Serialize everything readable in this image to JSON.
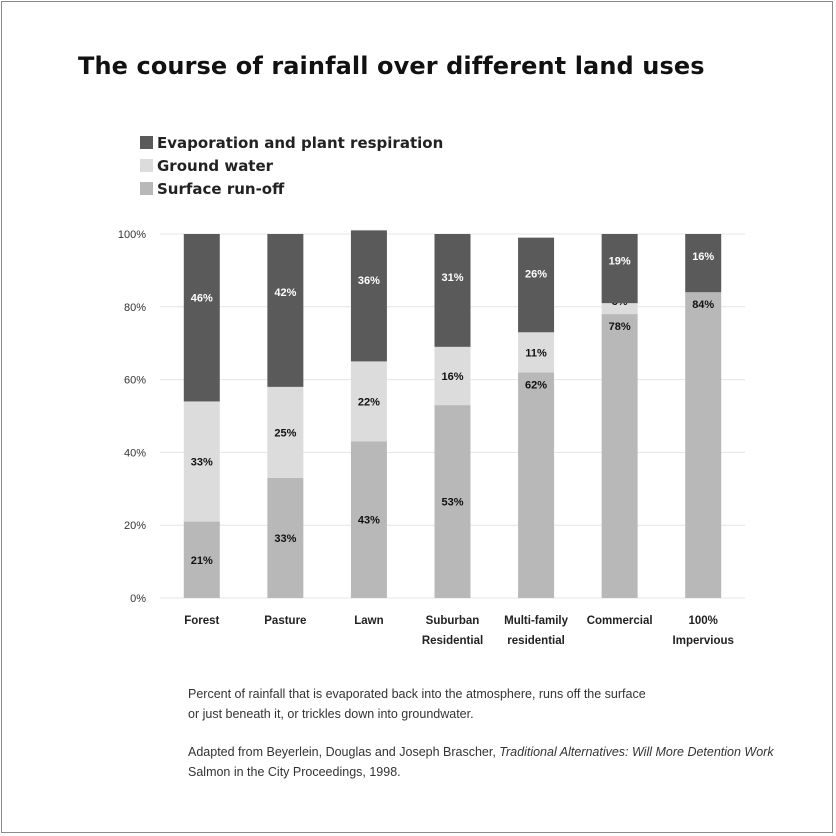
{
  "title": "The course of rainfall over different land uses",
  "legend": [
    {
      "label": "Evaporation and plant respiration",
      "color": "#5a5a5a"
    },
    {
      "label": "Ground water",
      "color": "#dcdcdc"
    },
    {
      "label": "Surface run-off",
      "color": "#b8b8b8"
    }
  ],
  "caption": {
    "line1": "Percent of rainfall that is evaporated back into the atmosphere, runs off the surface",
    "line2": "or just beneath it, or trickles down into groundwater."
  },
  "credit": {
    "part1": "Adapted from Beyerlein, Douglas and Joseph Brascher, ",
    "italic": "Traditional Alternatives: Will More Detention Work",
    "line2": "Salmon in the City Proceedings, 1998."
  },
  "chart_data": {
    "type": "bar",
    "stacked": true,
    "title": "The course of rainfall over different land uses",
    "categories": [
      [
        "Forest"
      ],
      [
        "Pasture"
      ],
      [
        "Lawn"
      ],
      [
        "Suburban",
        "Residential"
      ],
      [
        "Multi-family",
        "residential"
      ],
      [
        "Commercial"
      ],
      [
        "100%",
        "Impervious"
      ]
    ],
    "series": [
      {
        "name": "Surface run-off",
        "color": "#b8b8b8",
        "label_color": "#111111",
        "values": [
          21,
          33,
          43,
          53,
          62,
          78,
          84
        ],
        "labels": [
          "21%",
          "33%",
          "43%",
          "53%",
          "62%",
          "78%",
          "84%"
        ]
      },
      {
        "name": "Ground water",
        "color": "#dcdcdc",
        "label_color": "#111111",
        "values": [
          33,
          25,
          22,
          16,
          11,
          3,
          0
        ],
        "labels": [
          "33%",
          "25%",
          "22%",
          "16%",
          "11%",
          "3%",
          ""
        ]
      },
      {
        "name": "Evaporation and plant respiration",
        "color": "#5a5a5a",
        "label_color": "#ffffff",
        "values": [
          46,
          42,
          36,
          31,
          26,
          19,
          16
        ],
        "labels": [
          "46%",
          "42%",
          "36%",
          "31%",
          "26%",
          "19%",
          "16%"
        ]
      }
    ],
    "yticks": [
      "0%",
      "20%",
      "40%",
      "60%",
      "80%",
      "100%"
    ],
    "ylim": [
      0,
      100
    ],
    "grid": true,
    "legend_position": "top-left"
  }
}
